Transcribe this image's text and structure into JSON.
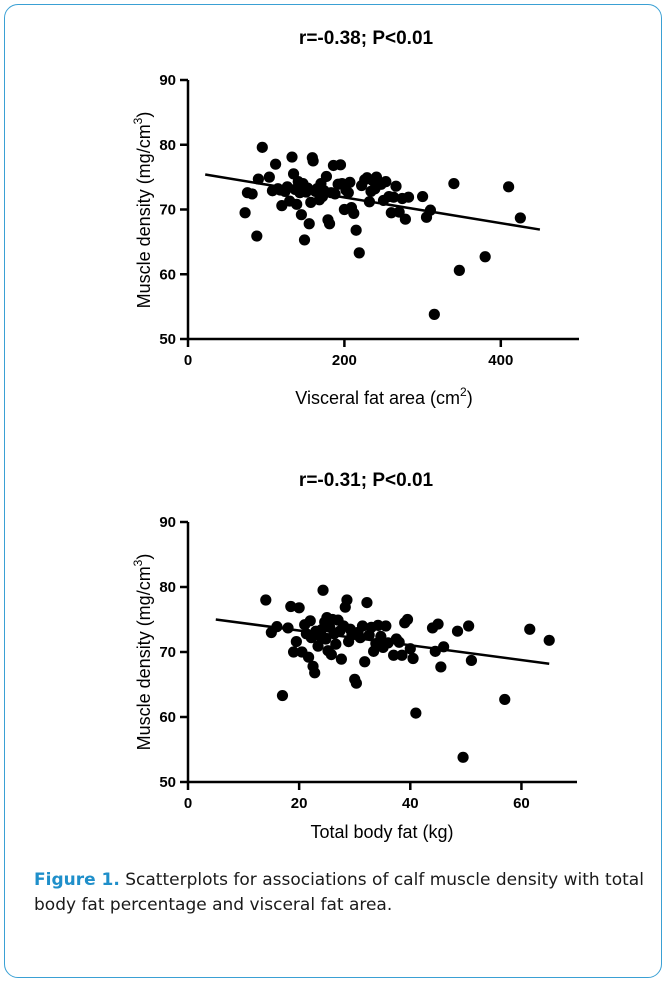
{
  "chart_data": [
    {
      "type": "scatter",
      "title": "r=-0.38; P<0.01",
      "xlabel": "Visceral fat area (cm",
      "xlabel_sup": "2",
      "xlabel_end": ")",
      "ylabel": "Muscle density (mg/cm",
      "ylabel_sup": "3",
      "ylabel_end": ")",
      "xlim": [
        0,
        500
      ],
      "ylim": [
        50,
        90
      ],
      "xticks": [
        0,
        200,
        400
      ],
      "yticks": [
        50,
        60,
        70,
        80,
        90
      ],
      "xtick_labels": [
        "0",
        "200",
        "400"
      ],
      "ytick_labels": [
        "50",
        "60",
        "70",
        "80",
        "90"
      ],
      "fit_line": {
        "x": [
          22,
          450
        ],
        "y": [
          75.4,
          66.9
        ]
      },
      "points": [
        [
          73,
          69.5
        ],
        [
          76,
          72.6
        ],
        [
          82,
          72.4
        ],
        [
          88,
          65.9
        ],
        [
          90,
          74.7
        ],
        [
          95,
          79.6
        ],
        [
          104,
          75.0
        ],
        [
          108,
          72.9
        ],
        [
          112,
          77.0
        ],
        [
          115,
          73.2
        ],
        [
          118,
          73.0
        ],
        [
          120,
          70.6
        ],
        [
          124,
          72.8
        ],
        [
          127,
          73.5
        ],
        [
          130,
          71.3
        ],
        [
          133,
          78.1
        ],
        [
          135,
          75.5
        ],
        [
          137,
          73.1
        ],
        [
          139,
          70.8
        ],
        [
          141,
          74.3
        ],
        [
          143,
          72.6
        ],
        [
          145,
          69.2
        ],
        [
          147,
          74.0
        ],
        [
          149,
          65.3
        ],
        [
          151,
          72.7
        ],
        [
          153,
          73.3
        ],
        [
          155,
          67.8
        ],
        [
          157,
          71.1
        ],
        [
          159,
          78.0
        ],
        [
          160,
          77.5
        ],
        [
          163,
          72.8
        ],
        [
          165,
          73.2
        ],
        [
          168,
          71.5
        ],
        [
          170,
          74.0
        ],
        [
          172,
          72.0
        ],
        [
          174,
          72.9
        ],
        [
          177,
          75.1
        ],
        [
          179,
          68.4
        ],
        [
          181,
          67.8
        ],
        [
          183,
          72.6
        ],
        [
          186,
          76.8
        ],
        [
          188,
          72.4
        ],
        [
          192,
          73.9
        ],
        [
          195,
          76.9
        ],
        [
          197,
          74.0
        ],
        [
          200,
          70.0
        ],
        [
          202,
          73.0
        ],
        [
          205,
          72.6
        ],
        [
          207,
          74.2
        ],
        [
          209,
          70.3
        ],
        [
          212,
          69.4
        ],
        [
          215,
          66.8
        ],
        [
          219,
          63.3
        ],
        [
          222,
          73.7
        ],
        [
          226,
          74.6
        ],
        [
          229,
          74.9
        ],
        [
          232,
          71.2
        ],
        [
          234,
          72.8
        ],
        [
          236,
          74.5
        ],
        [
          239,
          73.2
        ],
        [
          241,
          75.0
        ],
        [
          244,
          74.1
        ],
        [
          247,
          73.9
        ],
        [
          250,
          71.4
        ],
        [
          253,
          74.3
        ],
        [
          257,
          72.0
        ],
        [
          260,
          69.5
        ],
        [
          263,
          71.9
        ],
        [
          266,
          73.6
        ],
        [
          270,
          69.6
        ],
        [
          274,
          71.7
        ],
        [
          278,
          68.5
        ],
        [
          282,
          71.9
        ],
        [
          300,
          72.0
        ],
        [
          305,
          68.8
        ],
        [
          310,
          69.9
        ],
        [
          315,
          53.8
        ],
        [
          340,
          74.0
        ],
        [
          347,
          60.6
        ],
        [
          380,
          62.7
        ],
        [
          410,
          73.5
        ],
        [
          425,
          68.7
        ]
      ]
    },
    {
      "type": "scatter",
      "title": "r=-0.31; P<0.01",
      "xlabel": "Total body fat (kg)",
      "ylabel": "Muscle density (mg/cm",
      "ylabel_sup": "3",
      "ylabel_end": ")",
      "xlim": [
        0,
        70
      ],
      "ylim": [
        50,
        90
      ],
      "xticks": [
        0,
        20,
        40,
        60
      ],
      "yticks": [
        50,
        60,
        70,
        80,
        90
      ],
      "xtick_labels": [
        "0",
        "20",
        "40",
        "60"
      ],
      "ytick_labels": [
        "50",
        "60",
        "70",
        "80",
        "90"
      ],
      "fit_line": {
        "x": [
          5,
          65
        ],
        "y": [
          75.0,
          68.2
        ]
      },
      "points": [
        [
          14,
          78.0
        ],
        [
          15,
          73.0
        ],
        [
          16,
          73.9
        ],
        [
          17,
          63.3
        ],
        [
          18,
          73.7
        ],
        [
          18.5,
          77.0
        ],
        [
          19,
          70.0
        ],
        [
          19.5,
          71.6
        ],
        [
          20,
          76.8
        ],
        [
          20.5,
          70.0
        ],
        [
          21,
          74.2
        ],
        [
          21.3,
          72.8
        ],
        [
          21.7,
          69.2
        ],
        [
          22,
          74.8
        ],
        [
          22.2,
          72.2
        ],
        [
          22.5,
          67.8
        ],
        [
          22.8,
          66.8
        ],
        [
          23,
          73.2
        ],
        [
          23.4,
          70.9
        ],
        [
          23.8,
          72.4
        ],
        [
          24,
          73.4
        ],
        [
          24.3,
          79.5
        ],
        [
          24.6,
          74.6
        ],
        [
          24.8,
          72.0
        ],
        [
          25,
          75.3
        ],
        [
          25.2,
          70.2
        ],
        [
          25.5,
          73.8
        ],
        [
          25.8,
          69.6
        ],
        [
          26,
          75.0
        ],
        [
          26.3,
          72.8
        ],
        [
          26.6,
          71.2
        ],
        [
          27,
          74.9
        ],
        [
          27.3,
          73.2
        ],
        [
          27.6,
          68.9
        ],
        [
          28,
          74.0
        ],
        [
          28.3,
          76.9
        ],
        [
          28.6,
          78.0
        ],
        [
          28.9,
          71.6
        ],
        [
          29.2,
          73.5
        ],
        [
          29.5,
          72.6
        ],
        [
          30,
          65.8
        ],
        [
          30.3,
          65.2
        ],
        [
          30.6,
          73.0
        ],
        [
          31,
          72.2
        ],
        [
          31.4,
          74.0
        ],
        [
          31.8,
          68.5
        ],
        [
          32.2,
          77.6
        ],
        [
          32.6,
          72.6
        ],
        [
          33,
          73.8
        ],
        [
          33.4,
          70.1
        ],
        [
          33.8,
          71.3
        ],
        [
          34.2,
          74.1
        ],
        [
          34.7,
          72.4
        ],
        [
          35.1,
          70.7
        ],
        [
          35.6,
          74.0
        ],
        [
          36,
          71.4
        ],
        [
          37,
          69.5
        ],
        [
          37.5,
          72.0
        ],
        [
          38,
          71.5
        ],
        [
          38.5,
          69.5
        ],
        [
          39,
          74.5
        ],
        [
          39.5,
          75.0
        ],
        [
          40,
          70.5
        ],
        [
          40.5,
          69.0
        ],
        [
          41,
          60.6
        ],
        [
          44,
          73.7
        ],
        [
          44.5,
          70.1
        ],
        [
          45,
          74.3
        ],
        [
          45.5,
          67.7
        ],
        [
          46,
          70.8
        ],
        [
          48.5,
          73.2
        ],
        [
          49.5,
          53.8
        ],
        [
          50.5,
          74.0
        ],
        [
          51,
          68.7
        ],
        [
          57,
          62.7
        ],
        [
          61.5,
          73.5
        ],
        [
          65,
          71.8
        ]
      ]
    }
  ],
  "caption": {
    "label": "Figure 1.",
    "text": "Scatterplots for associations of calf muscle density with total body fat percentage and visceral fat area."
  },
  "colors": {
    "frame": "#3aa0d4",
    "caption_label": "#1f8fca",
    "marker": "#000000"
  }
}
